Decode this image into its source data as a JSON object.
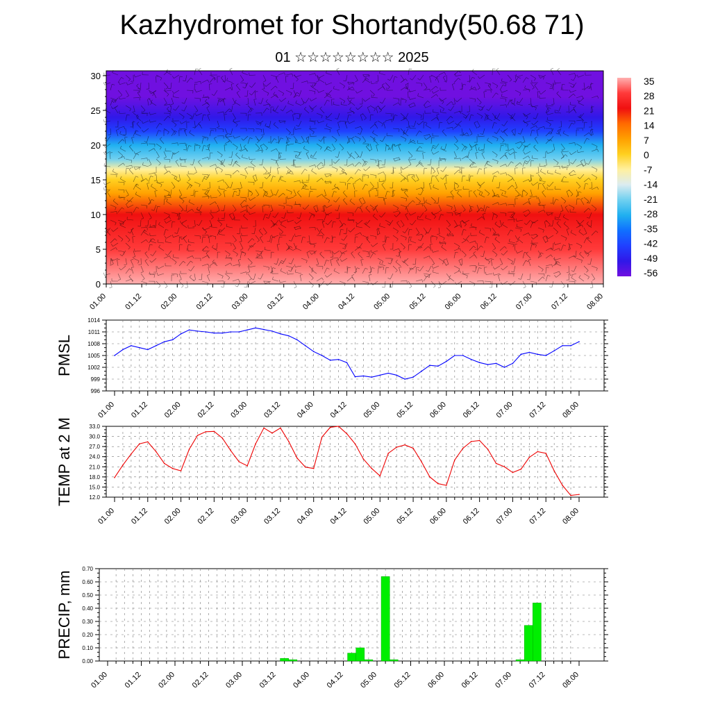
{
  "header": {
    "title": "Kazhydromet for Shortandy(50.68 71)",
    "subtitle": "01 ☆☆☆☆☆☆☆☆ 2025"
  },
  "chart_data": [
    {
      "type": "heatmap",
      "id": "cross_section",
      "title": "",
      "xlabel": "",
      "ylabel": "",
      "x_ticks": [
        "01.00",
        "01.12",
        "02.00",
        "02.12",
        "03.00",
        "03.12",
        "04.00",
        "04.12",
        "05.00",
        "05.12",
        "06.00",
        "06.12",
        "07.00",
        "07.12",
        "08.00"
      ],
      "y_ticks": [
        0,
        5,
        10,
        15,
        20,
        25,
        30
      ],
      "ylim": [
        0,
        30.7
      ],
      "overlay": "wind barbs",
      "colorbar": {
        "labels": [
          35,
          28,
          21,
          14,
          7,
          0,
          -7,
          -14,
          -21,
          -28,
          -35,
          -42,
          -49,
          -56
        ],
        "colors": [
          "#ffb0b0",
          "#ff3a3a",
          "#f01010",
          "#ff6a00",
          "#ffa000",
          "#ffd020",
          "#fff0a0",
          "#dcecf0",
          "#70d0f0",
          "#20b0f0",
          "#1070ff",
          "#2040ff",
          "#3018e8",
          "#7010e0"
        ]
      },
      "profile": [
        {
          "h": 0,
          "t": 32
        },
        {
          "h": 5,
          "t": 26
        },
        {
          "h": 10,
          "t": 18
        },
        {
          "h": 13,
          "t": 10
        },
        {
          "h": 15,
          "t": 2
        },
        {
          "h": 16.5,
          "t": -8
        },
        {
          "h": 18,
          "t": -20
        },
        {
          "h": 20,
          "t": -30
        },
        {
          "h": 22,
          "t": -40
        },
        {
          "h": 24,
          "t": -50
        },
        {
          "h": 27,
          "t": -55
        },
        {
          "h": 30.7,
          "t": -58
        }
      ]
    },
    {
      "type": "line",
      "id": "pmsl",
      "title": "",
      "xlabel": "",
      "ylabel": "PMSL",
      "ylim": [
        996,
        1014
      ],
      "y_ticks": [
        "996",
        "999",
        "1002",
        "1005",
        "1008",
        "1011",
        "1014"
      ],
      "x_ticks": [
        "01.00",
        "01.12",
        "02.00",
        "02.12",
        "03.00",
        "03.12",
        "04.00",
        "04.12",
        "05.00",
        "05.12",
        "06.00",
        "06.12",
        "07.00",
        "07.12",
        "08.00"
      ],
      "color": "#0000ff",
      "x": [
        0,
        3,
        6,
        9,
        12,
        15,
        18,
        21,
        24,
        27,
        30,
        33,
        36,
        39,
        42,
        45,
        48,
        51,
        54,
        57,
        60,
        63,
        66,
        69,
        72,
        75,
        78,
        81,
        84,
        87,
        90,
        93,
        96,
        99,
        102,
        105,
        108,
        111,
        114,
        117,
        120,
        123,
        126,
        129,
        132,
        135,
        138,
        141,
        144,
        147,
        150,
        153,
        156,
        159,
        162,
        165,
        168
      ],
      "values": [
        1005,
        1006.5,
        1007.5,
        1007,
        1006.5,
        1007.5,
        1008.5,
        1009,
        1010.5,
        1011.5,
        1011.2,
        1011,
        1010.7,
        1010.7,
        1011,
        1011,
        1011.5,
        1012,
        1011.6,
        1011.2,
        1010.5,
        1010,
        1009,
        1007.5,
        1006,
        1005,
        1003.8,
        1004,
        1003.2,
        999.6,
        999.8,
        999.5,
        1000,
        1000.5,
        1000,
        999,
        999.5,
        1001,
        1002.5,
        1002.3,
        1003.5,
        1005,
        1005,
        1004,
        1003.2,
        1002.7,
        1003,
        1002,
        1003,
        1005.3,
        1005.8,
        1005.3,
        1005,
        1006.2,
        1007.5,
        1007.5,
        1008.5
      ]
    },
    {
      "type": "line",
      "id": "temp2m",
      "title": "",
      "xlabel": "",
      "ylabel": "TEMP at 2 M",
      "ylim": [
        12,
        33
      ],
      "y_ticks": [
        "12.0",
        "15.0",
        "18.0",
        "21.0",
        "24.0",
        "27.0",
        "30.0",
        "33.0"
      ],
      "x_ticks": [
        "01.00",
        "01.12",
        "02.00",
        "02.12",
        "03.00",
        "03.12",
        "04.00",
        "04.12",
        "05.00",
        "05.12",
        "06.00",
        "06.12",
        "07.00",
        "07.12",
        "08.00"
      ],
      "color": "#ee0000",
      "x": [
        0,
        3,
        6,
        9,
        12,
        15,
        18,
        21,
        24,
        27,
        30,
        33,
        36,
        39,
        42,
        45,
        48,
        51,
        54,
        57,
        60,
        63,
        66,
        69,
        72,
        75,
        78,
        81,
        84,
        87,
        90,
        93,
        96,
        99,
        102,
        105,
        108,
        111,
        114,
        117,
        120,
        123,
        126,
        129,
        132,
        135,
        138,
        141,
        144,
        147,
        150,
        153,
        156,
        159,
        162,
        165,
        168
      ],
      "values": [
        17.8,
        21.5,
        24.8,
        27.8,
        28.4,
        25.5,
        22,
        20.5,
        19.8,
        26.2,
        30.3,
        31.4,
        31.5,
        29.5,
        25.8,
        22.5,
        21.3,
        27.8,
        32.5,
        31,
        32.5,
        28.5,
        23.6,
        20.9,
        20.5,
        29.8,
        32.7,
        33,
        30.8,
        27.8,
        23.3,
        20.5,
        18.3,
        25,
        26.8,
        27.5,
        26.5,
        22.5,
        18,
        16,
        15.5,
        23,
        26.5,
        28.5,
        28.8,
        26.2,
        22,
        21,
        19.3,
        20.3,
        23.8,
        25.5,
        25,
        19.8,
        15.5,
        12.5,
        12.8
      ]
    },
    {
      "type": "bar",
      "id": "precip",
      "title": "",
      "xlabel": "",
      "ylabel": "PRECIP, mm",
      "ylim": [
        0,
        0.7
      ],
      "y_ticks": [
        "0.00",
        "0.10",
        "0.20",
        "0.30",
        "0.40",
        "0.50",
        "0.60",
        "0.70"
      ],
      "x_ticks": [
        "01.00",
        "01.12",
        "02.00",
        "02.12",
        "03.00",
        "03.12",
        "04.00",
        "04.12",
        "05.00",
        "05.12",
        "06.00",
        "06.12",
        "07.00",
        "07.12",
        "08.00"
      ],
      "color": "#00ee00",
      "bars": [
        {
          "x": 63,
          "v": 0.02
        },
        {
          "x": 66,
          "v": 0.01
        },
        {
          "x": 87,
          "v": 0.06
        },
        {
          "x": 90,
          "v": 0.1
        },
        {
          "x": 93,
          "v": 0.01
        },
        {
          "x": 99,
          "v": 0.64
        },
        {
          "x": 102,
          "v": 0.01
        },
        {
          "x": 147,
          "v": 0.01
        },
        {
          "x": 150,
          "v": 0.27
        },
        {
          "x": 153,
          "v": 0.44
        }
      ]
    }
  ]
}
